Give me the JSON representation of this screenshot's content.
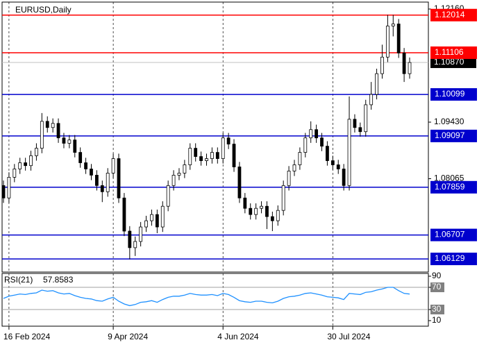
{
  "chart_data": {
    "type": "candlestick",
    "title": "EURUSD,Daily",
    "ylim": [
      1.05812,
      1.12328
    ],
    "yticks": [
      {
        "value": 1.1216,
        "label": "1.12160"
      },
      {
        "value": 1.0943,
        "label": "1.09430"
      },
      1.08065
    ],
    "grid": "x",
    "up_color": "#ffffff",
    "down_color": "#000000",
    "last_price": {
      "value": 1.1087,
      "label": "1.10870",
      "color": "#000000"
    },
    "levels": [
      {
        "value": 1.12014,
        "color": "#ff0000"
      },
      {
        "value": 1.11106,
        "color": "#ff0000"
      },
      {
        "value": 1.10099,
        "color": "#0000cd"
      },
      {
        "value": 1.09097,
        "color": "#0000cd"
      },
      {
        "value": 1.07859,
        "color": "#0000cd"
      },
      {
        "value": 1.06707,
        "color": "#0000cd"
      },
      {
        "value": 1.06129,
        "color": "#0000cd"
      }
    ],
    "xticks": [
      {
        "index": 1,
        "label": "16 Feb 2024"
      },
      {
        "index": 20,
        "label": "9 Apr 2024"
      },
      {
        "index": 40,
        "label": "4 Jun 2024"
      },
      {
        "index": 60,
        "label": "30 Jul 2024"
      }
    ],
    "open": [
      1.079,
      1.076,
      1.081,
      1.083,
      1.0845,
      1.0838,
      1.0862,
      1.088,
      1.0945,
      1.093,
      1.094,
      1.0905,
      1.0892,
      1.09,
      1.087,
      1.0845,
      1.083,
      1.0815,
      1.079,
      1.0775,
      1.082,
      1.0855,
      1.076,
      1.068,
      1.064,
      1.0655,
      1.069,
      1.0705,
      1.072,
      1.069,
      1.074,
      1.079,
      1.0815,
      1.082,
      1.084,
      1.088,
      1.086,
      1.085,
      1.0855,
      1.087,
      1.0855,
      1.0905,
      1.089,
      1.0835,
      1.076,
      1.0735,
      1.072,
      1.0735,
      1.074,
      1.0715,
      1.0705,
      1.073,
      1.079,
      1.0825,
      1.084,
      1.087,
      1.0905,
      1.0925,
      1.0905,
      1.0885,
      1.085,
      1.084,
      1.083,
      1.079,
      1.095,
      1.093,
      1.092,
      1.0985,
      1.101,
      1.106,
      1.11,
      1.1175,
      1.118,
      1.111,
      1.106
    ],
    "high": [
      1.0802,
      1.0822,
      1.0842,
      1.0857,
      1.0857,
      1.0874,
      1.0892,
      1.0965,
      1.0957,
      1.0952,
      1.0952,
      1.0917,
      1.0912,
      1.0912,
      1.0882,
      1.0857,
      1.0842,
      1.0827,
      1.0802,
      1.0832,
      1.0867,
      1.0867,
      1.0772,
      1.0692,
      1.0667,
      1.0702,
      1.0717,
      1.0732,
      1.0732,
      1.0752,
      1.0802,
      1.0827,
      1.0832,
      1.0852,
      1.0892,
      1.0892,
      1.0872,
      1.0867,
      1.0882,
      1.0882,
      1.0917,
      1.0917,
      1.0902,
      1.0847,
      1.0772,
      1.0747,
      1.0747,
      1.0752,
      1.0752,
      1.0727,
      1.0742,
      1.0802,
      1.0837,
      1.0852,
      1.0882,
      1.0917,
      1.0945,
      1.0937,
      1.0917,
      1.0897,
      1.0862,
      1.0852,
      1.0842,
      1.1005,
      1.0962,
      1.0942,
      1.0997,
      1.104,
      1.1072,
      1.113,
      1.1202,
      1.1202,
      1.1192,
      1.1122,
      1.1099
    ],
    "low": [
      1.0748,
      1.0748,
      1.0798,
      1.0818,
      1.0826,
      1.0826,
      1.085,
      1.0868,
      1.0918,
      1.0918,
      1.0893,
      1.088,
      1.088,
      1.0858,
      1.0833,
      1.0818,
      1.0803,
      1.0778,
      1.075,
      1.0763,
      1.0808,
      1.0748,
      1.0668,
      1.0612,
      1.062,
      1.0643,
      1.0678,
      1.0693,
      1.0675,
      1.0678,
      1.0728,
      1.0778,
      1.0803,
      1.0808,
      1.0828,
      1.0848,
      1.0838,
      1.0838,
      1.0843,
      1.0843,
      1.0843,
      1.0878,
      1.0823,
      1.0748,
      1.0723,
      1.0708,
      1.0708,
      1.0723,
      1.0685,
      1.068,
      1.0693,
      1.0718,
      1.0778,
      1.0813,
      1.0828,
      1.0858,
      1.0893,
      1.0893,
      1.0873,
      1.0838,
      1.0828,
      1.0818,
      1.0778,
      1.0778,
      1.0918,
      1.0908,
      1.0908,
      1.0973,
      1.0998,
      1.1048,
      1.1088,
      1.115,
      1.1098,
      1.104,
      1.1048
    ],
    "close": [
      1.076,
      1.081,
      1.083,
      1.0845,
      1.0838,
      1.0862,
      1.088,
      1.0945,
      1.093,
      1.094,
      1.0905,
      1.0892,
      1.09,
      1.087,
      1.0845,
      1.083,
      1.0815,
      1.079,
      1.0775,
      1.082,
      1.0855,
      1.076,
      1.068,
      1.064,
      1.0655,
      1.069,
      1.0705,
      1.072,
      1.069,
      1.074,
      1.079,
      1.0815,
      1.082,
      1.084,
      1.088,
      1.086,
      1.085,
      1.0855,
      1.087,
      1.0855,
      1.0905,
      1.089,
      1.0835,
      1.076,
      1.0735,
      1.072,
      1.0735,
      1.074,
      1.0715,
      1.0705,
      1.073,
      1.079,
      1.0825,
      1.084,
      1.087,
      1.0905,
      1.0925,
      1.0905,
      1.0885,
      1.085,
      1.084,
      1.083,
      1.079,
      1.095,
      1.093,
      1.092,
      1.0985,
      1.101,
      1.106,
      1.11,
      1.1175,
      1.118,
      1.111,
      1.106,
      1.1087
    ],
    "rsi": {
      "name": "RSI(21)",
      "color": "#1e90ff",
      "ylim": [
        10,
        90
      ],
      "yticks": [
        90,
        70,
        30,
        10
      ],
      "levels": [
        70,
        30
      ],
      "values": [
        50,
        54,
        56,
        58,
        57,
        59,
        60,
        65,
        63,
        64,
        60,
        58,
        59,
        55,
        52,
        50,
        49,
        46,
        45,
        49,
        52,
        45,
        40,
        37,
        39,
        43,
        44,
        46,
        43,
        48,
        52,
        54,
        54,
        56,
        59,
        57,
        56,
        56,
        57,
        55,
        59,
        57,
        52,
        46,
        44,
        43,
        45,
        45,
        43,
        42,
        45,
        50,
        53,
        54,
        56,
        59,
        60,
        58,
        56,
        53,
        52,
        51,
        48,
        59,
        58,
        57,
        61,
        62,
        65,
        67,
        70,
        70,
        64,
        59,
        57.8583
      ]
    }
  }
}
